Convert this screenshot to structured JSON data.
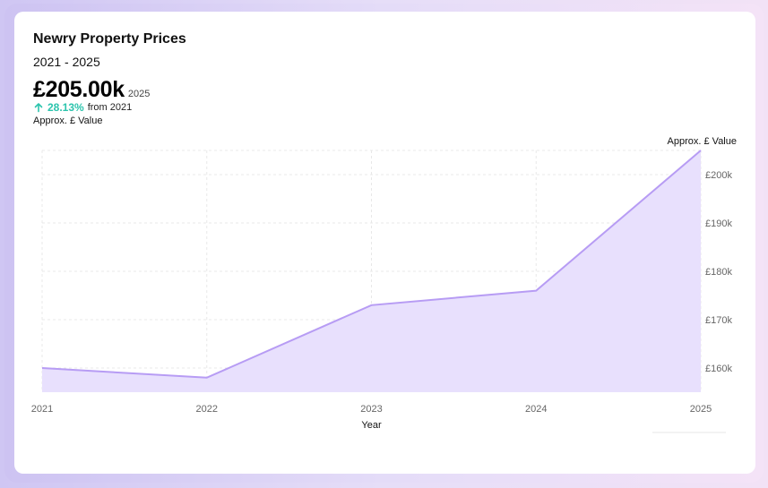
{
  "header": {
    "title": "Newry Property Prices",
    "subtitle": "2021 - 2025",
    "current_value": "£205.00k",
    "current_year": "2025",
    "change_pct": "28.13%",
    "change_from": "from 2021",
    "value_label": "Approx. £ Value",
    "change_icon": "arrow-up-icon",
    "change_color": "#2cc4ad"
  },
  "chart_data": {
    "type": "area",
    "x": [
      "2021",
      "2022",
      "2023",
      "2024",
      "2025"
    ],
    "xlabel": "Year",
    "ylabel": "Approx. £ Value",
    "series": [
      {
        "values": [
          160000,
          158000,
          173000,
          176000,
          205000
        ]
      }
    ],
    "ylim": [
      155000,
      205000
    ],
    "yticks": [
      160000,
      170000,
      180000,
      190000,
      200000
    ],
    "ytick_labels": [
      "£160k",
      "£170k",
      "£180k",
      "£190k",
      "£200k"
    ],
    "y_axis_side": "right",
    "grid": true,
    "colors": {
      "line": "#b79cf4",
      "fill": "#e8e0fd",
      "grid": "#e8e8e8"
    }
  }
}
